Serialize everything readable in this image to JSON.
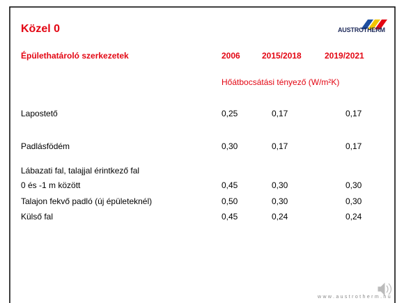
{
  "header": {
    "title": "Közel 0",
    "logo": "AUSTROTHERM"
  },
  "table": {
    "columns": [
      "Épülethatároló szerkezetek",
      "2006",
      "2015/2018",
      "2019/2021"
    ],
    "unit": "Hőátbocsátási tényező (W/m²K)",
    "rows": [
      [
        [
          "Lapostető"
        ],
        "0,25",
        "0,17",
        "0,17"
      ],
      [
        [
          "Padlásfödém"
        ],
        "0,30",
        "0,17",
        "0,17"
      ],
      [
        [
          "Lábazati fal, talajjal érintkező fal",
          "0 és -1 m között"
        ],
        "0,45",
        "0,30",
        "0,30"
      ],
      [
        [
          "Talajon fekvő padló (új épületeknél)"
        ],
        "0,50",
        "0,30",
        "0,30"
      ],
      [
        [
          "Külső fal"
        ],
        "0,45",
        "0,24",
        "0,24"
      ]
    ]
  },
  "footer": {
    "url": "www.austrotherm.hu"
  }
}
